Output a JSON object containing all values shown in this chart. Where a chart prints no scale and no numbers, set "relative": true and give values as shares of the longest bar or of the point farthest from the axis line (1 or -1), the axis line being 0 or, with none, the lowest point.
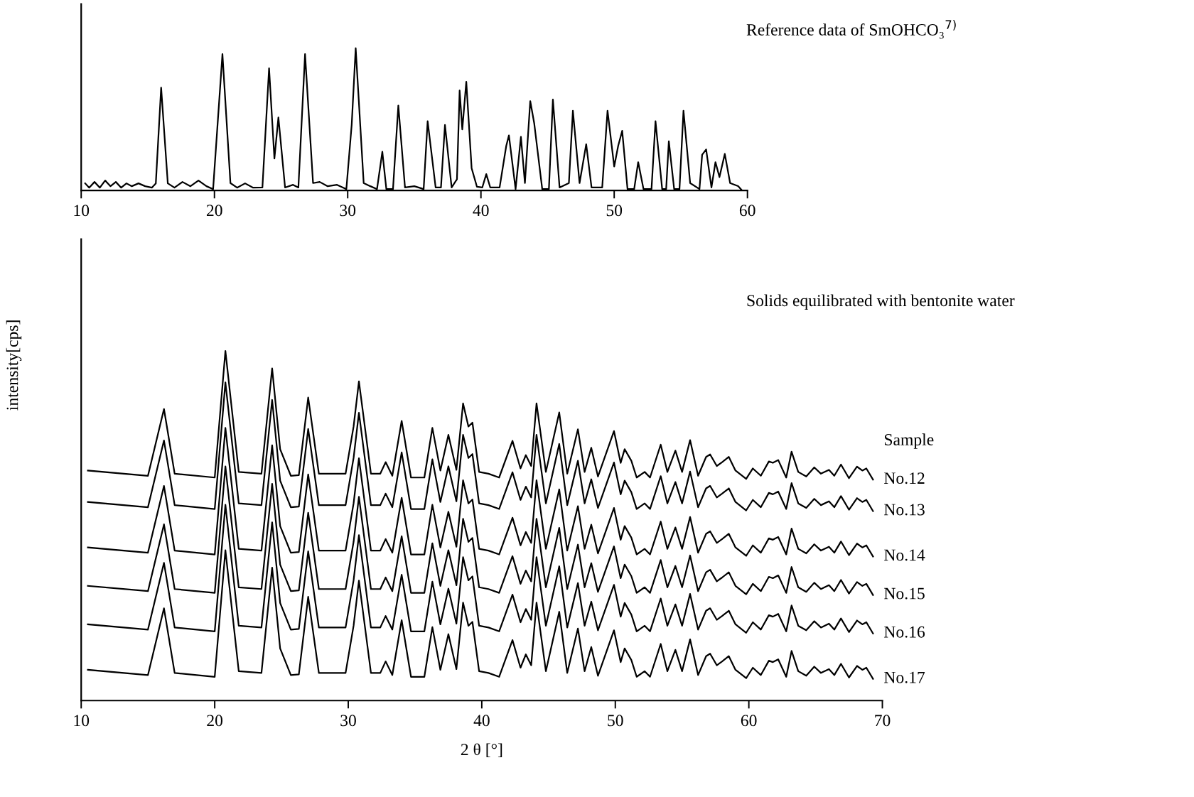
{
  "chart_data": [
    {
      "type": "line",
      "title": "Reference data of SmOHCO₃$^{7)}$",
      "relative": true,
      "tick_labels": "x",
      "xlim": [
        10,
        60
      ],
      "xticks": [
        10,
        20,
        30,
        40,
        50,
        60
      ],
      "x": [
        10.3,
        10.6,
        11.0,
        11.4,
        11.8,
        12.2,
        12.6,
        13.0,
        13.4,
        13.8,
        14.3,
        14.8,
        15.3,
        15.6,
        16.0,
        16.5,
        17.0,
        17.6,
        18.2,
        18.8,
        19.4,
        19.9,
        20.6,
        21.2,
        21.7,
        22.3,
        22.9,
        23.6,
        24.1,
        24.5,
        24.8,
        25.3,
        25.9,
        26.3,
        26.8,
        27.4,
        27.9,
        28.5,
        29.2,
        29.9,
        30.3,
        30.6,
        31.2,
        31.7,
        32.2,
        32.6,
        32.9,
        33.4,
        33.8,
        34.3,
        35.0,
        35.7,
        36.0,
        36.6,
        37.0,
        37.3,
        37.8,
        38.2,
        38.4,
        38.6,
        38.9,
        39.3,
        39.7,
        40.1,
        40.4,
        40.7,
        41.4,
        41.9,
        42.1,
        42.6,
        43.0,
        43.3,
        43.7,
        44.0,
        44.6,
        45.1,
        45.4,
        45.9,
        46.6,
        46.9,
        47.4,
        47.9,
        48.3,
        49.1,
        49.5,
        50.0,
        50.3,
        50.6,
        51.0,
        51.5,
        51.8,
        52.2,
        52.8,
        53.1,
        53.6,
        53.9,
        54.1,
        54.5,
        54.9,
        55.2,
        55.7,
        56.4,
        56.6,
        56.9,
        57.3,
        57.6,
        57.9,
        58.3,
        58.7,
        59.3,
        59.6
      ],
      "series": [
        {
          "color": "#000000",
          "values": [
            0.05,
            0.02,
            0.06,
            0.02,
            0.07,
            0.03,
            0.06,
            0.02,
            0.05,
            0.03,
            0.05,
            0.03,
            0.02,
            0.05,
            0.723,
            0.05,
            0.02,
            0.06,
            0.03,
            0.07,
            0.03,
            0.01,
            0.958,
            0.052,
            0.02,
            0.05,
            0.02,
            0.021,
            0.859,
            0.225,
            0.513,
            0.021,
            0.04,
            0.021,
            0.958,
            0.052,
            0.06,
            0.03,
            0.04,
            0.01,
            0.461,
            1.0,
            0.052,
            0.03,
            0.01,
            0.272,
            0.01,
            0.01,
            0.597,
            0.021,
            0.03,
            0.01,
            0.487,
            0.021,
            0.021,
            0.461,
            0.021,
            0.079,
            0.702,
            0.429,
            0.764,
            0.157,
            0.026,
            0.021,
            0.115,
            0.021,
            0.021,
            0.314,
            0.387,
            0.01,
            0.377,
            0.052,
            0.628,
            0.471,
            0.01,
            0.01,
            0.639,
            0.021,
            0.052,
            0.56,
            0.052,
            0.325,
            0.021,
            0.021,
            0.56,
            0.168,
            0.314,
            0.419,
            0.01,
            0.01,
            0.199,
            0.01,
            0.01,
            0.487,
            0.01,
            0.01,
            0.346,
            0.01,
            0.01,
            0.56,
            0.052,
            0.01,
            0.251,
            0.288,
            0.021,
            0.199,
            0.094,
            0.257,
            0.052,
            0.031,
            0.0
          ]
        }
      ]
    },
    {
      "type": "line",
      "title": "Solids equilibrated with bentonite water",
      "xlabel": "2 θ [°]",
      "ylabel": "intensity[cps]",
      "legend_title": "Sample",
      "relative": true,
      "tick_labels": "x",
      "xlim": [
        10,
        70
      ],
      "xticks": [
        10,
        20,
        30,
        40,
        50,
        60,
        70
      ],
      "x": [
        10.5,
        15.0,
        16.2,
        17.0,
        20.0,
        20.8,
        21.8,
        23.5,
        24.3,
        24.9,
        25.7,
        26.3,
        27.0,
        27.8,
        29.8,
        30.4,
        30.8,
        31.7,
        32.4,
        32.8,
        33.3,
        34.0,
        34.7,
        35.7,
        36.3,
        36.9,
        37.5,
        38.1,
        38.6,
        39.0,
        39.3,
        39.8,
        40.5,
        41.3,
        42.3,
        42.9,
        43.3,
        43.7,
        44.1,
        44.8,
        45.8,
        46.4,
        47.2,
        47.7,
        48.2,
        48.7,
        49.9,
        50.4,
        50.7,
        51.2,
        51.6,
        52.2,
        52.6,
        53.4,
        53.9,
        54.5,
        55.0,
        55.6,
        56.2,
        56.8,
        57.1,
        57.6,
        58.0,
        58.5,
        59.0,
        59.8,
        60.3,
        60.9,
        61.5,
        61.8,
        62.2,
        62.8,
        63.2,
        63.7,
        64.3,
        64.9,
        65.4,
        66.0,
        66.4,
        66.9,
        67.5,
        68.1,
        68.5,
        68.8,
        69.3
      ],
      "series": [
        {
          "name": "No.12",
          "color": "#000000",
          "values": [
            0.658,
            0.643,
            0.834,
            0.649,
            0.638,
            1.0,
            0.654,
            0.649,
            0.95,
            0.719,
            0.643,
            0.645,
            0.867,
            0.649,
            0.649,
            0.784,
            0.913,
            0.649,
            0.649,
            0.682,
            0.643,
            0.8,
            0.638,
            0.638,
            0.78,
            0.658,
            0.76,
            0.66,
            0.85,
            0.784,
            0.795,
            0.654,
            0.649,
            0.638,
            0.743,
            0.664,
            0.702,
            0.671,
            0.85,
            0.654,
            0.824,
            0.649,
            0.776,
            0.654,
            0.723,
            0.641,
            0.771,
            0.68,
            0.719,
            0.686,
            0.638,
            0.654,
            0.638,
            0.732,
            0.654,
            0.715,
            0.654,
            0.745,
            0.643,
            0.697,
            0.704,
            0.671,
            0.682,
            0.697,
            0.658,
            0.634,
            0.664,
            0.643,
            0.684,
            0.68,
            0.688,
            0.638,
            0.712,
            0.654,
            0.641,
            0.667,
            0.649,
            0.66,
            0.643,
            0.675,
            0.636,
            0.669,
            0.658,
            0.664,
            0.632
          ]
        },
        {
          "name": "No.13",
          "color": "#000000",
          "values": [
            0.568,
            0.553,
            0.744,
            0.559,
            0.548,
            0.91,
            0.564,
            0.559,
            0.86,
            0.629,
            0.553,
            0.555,
            0.777,
            0.559,
            0.559,
            0.694,
            0.823,
            0.559,
            0.559,
            0.592,
            0.553,
            0.71,
            0.548,
            0.548,
            0.69,
            0.568,
            0.67,
            0.57,
            0.76,
            0.694,
            0.705,
            0.564,
            0.559,
            0.548,
            0.653,
            0.574,
            0.612,
            0.581,
            0.76,
            0.564,
            0.734,
            0.559,
            0.686,
            0.564,
            0.633,
            0.551,
            0.681,
            0.59,
            0.629,
            0.596,
            0.548,
            0.564,
            0.548,
            0.642,
            0.564,
            0.625,
            0.564,
            0.655,
            0.553,
            0.607,
            0.614,
            0.581,
            0.592,
            0.607,
            0.568,
            0.544,
            0.574,
            0.553,
            0.594,
            0.59,
            0.598,
            0.548,
            0.622,
            0.564,
            0.551,
            0.577,
            0.559,
            0.57,
            0.553,
            0.585,
            0.546,
            0.579,
            0.568,
            0.574,
            0.542
          ]
        },
        {
          "name": "No.14",
          "color": "#000000",
          "values": [
            0.438,
            0.423,
            0.614,
            0.429,
            0.418,
            0.78,
            0.434,
            0.429,
            0.73,
            0.499,
            0.423,
            0.425,
            0.647,
            0.429,
            0.429,
            0.564,
            0.693,
            0.429,
            0.429,
            0.462,
            0.423,
            0.58,
            0.418,
            0.418,
            0.56,
            0.438,
            0.54,
            0.44,
            0.63,
            0.564,
            0.575,
            0.434,
            0.429,
            0.418,
            0.523,
            0.444,
            0.482,
            0.451,
            0.63,
            0.434,
            0.604,
            0.429,
            0.556,
            0.434,
            0.503,
            0.421,
            0.551,
            0.46,
            0.499,
            0.466,
            0.418,
            0.434,
            0.418,
            0.512,
            0.434,
            0.495,
            0.434,
            0.525,
            0.423,
            0.477,
            0.484,
            0.451,
            0.462,
            0.477,
            0.438,
            0.414,
            0.444,
            0.423,
            0.464,
            0.46,
            0.468,
            0.418,
            0.492,
            0.434,
            0.421,
            0.447,
            0.429,
            0.44,
            0.423,
            0.455,
            0.416,
            0.449,
            0.438,
            0.444,
            0.412
          ]
        },
        {
          "name": "No.15",
          "color": "#000000",
          "values": [
            0.328,
            0.313,
            0.504,
            0.319,
            0.308,
            0.67,
            0.324,
            0.319,
            0.62,
            0.389,
            0.313,
            0.315,
            0.537,
            0.319,
            0.319,
            0.454,
            0.583,
            0.319,
            0.319,
            0.352,
            0.313,
            0.47,
            0.308,
            0.308,
            0.45,
            0.328,
            0.43,
            0.33,
            0.52,
            0.454,
            0.465,
            0.324,
            0.319,
            0.308,
            0.413,
            0.334,
            0.372,
            0.341,
            0.52,
            0.324,
            0.494,
            0.319,
            0.446,
            0.324,
            0.393,
            0.311,
            0.441,
            0.35,
            0.389,
            0.356,
            0.308,
            0.324,
            0.308,
            0.402,
            0.324,
            0.385,
            0.324,
            0.415,
            0.313,
            0.367,
            0.374,
            0.341,
            0.352,
            0.367,
            0.328,
            0.304,
            0.334,
            0.313,
            0.354,
            0.35,
            0.358,
            0.308,
            0.382,
            0.324,
            0.311,
            0.337,
            0.319,
            0.33,
            0.313,
            0.345,
            0.306,
            0.339,
            0.328,
            0.334,
            0.302
          ]
        },
        {
          "name": "No.16",
          "color": "#000000",
          "values": [
            0.218,
            0.203,
            0.394,
            0.209,
            0.198,
            0.56,
            0.214,
            0.209,
            0.51,
            0.279,
            0.203,
            0.205,
            0.427,
            0.209,
            0.209,
            0.344,
            0.473,
            0.209,
            0.209,
            0.242,
            0.203,
            0.36,
            0.198,
            0.198,
            0.34,
            0.218,
            0.32,
            0.22,
            0.41,
            0.344,
            0.355,
            0.214,
            0.209,
            0.198,
            0.303,
            0.224,
            0.262,
            0.231,
            0.41,
            0.214,
            0.384,
            0.209,
            0.336,
            0.214,
            0.283,
            0.201,
            0.331,
            0.24,
            0.279,
            0.246,
            0.198,
            0.214,
            0.198,
            0.292,
            0.214,
            0.275,
            0.214,
            0.305,
            0.203,
            0.257,
            0.264,
            0.231,
            0.242,
            0.257,
            0.218,
            0.194,
            0.224,
            0.203,
            0.244,
            0.24,
            0.248,
            0.198,
            0.272,
            0.214,
            0.201,
            0.227,
            0.209,
            0.22,
            0.203,
            0.235,
            0.196,
            0.229,
            0.218,
            0.224,
            0.192
          ]
        },
        {
          "name": "No.17",
          "color": "#000000",
          "values": [
            0.088,
            0.073,
            0.264,
            0.079,
            0.068,
            0.43,
            0.084,
            0.079,
            0.38,
            0.149,
            0.073,
            0.075,
            0.297,
            0.079,
            0.079,
            0.214,
            0.343,
            0.079,
            0.079,
            0.112,
            0.073,
            0.23,
            0.068,
            0.068,
            0.21,
            0.088,
            0.19,
            0.09,
            0.28,
            0.214,
            0.225,
            0.084,
            0.079,
            0.068,
            0.173,
            0.094,
            0.132,
            0.101,
            0.28,
            0.084,
            0.254,
            0.079,
            0.206,
            0.084,
            0.153,
            0.071,
            0.201,
            0.11,
            0.149,
            0.116,
            0.068,
            0.084,
            0.068,
            0.162,
            0.084,
            0.145,
            0.084,
            0.175,
            0.073,
            0.127,
            0.134,
            0.101,
            0.112,
            0.127,
            0.088,
            0.064,
            0.094,
            0.073,
            0.114,
            0.11,
            0.118,
            0.068,
            0.142,
            0.084,
            0.071,
            0.097,
            0.079,
            0.09,
            0.073,
            0.105,
            0.066,
            0.099,
            0.088,
            0.094,
            0.062
          ]
        }
      ]
    }
  ]
}
